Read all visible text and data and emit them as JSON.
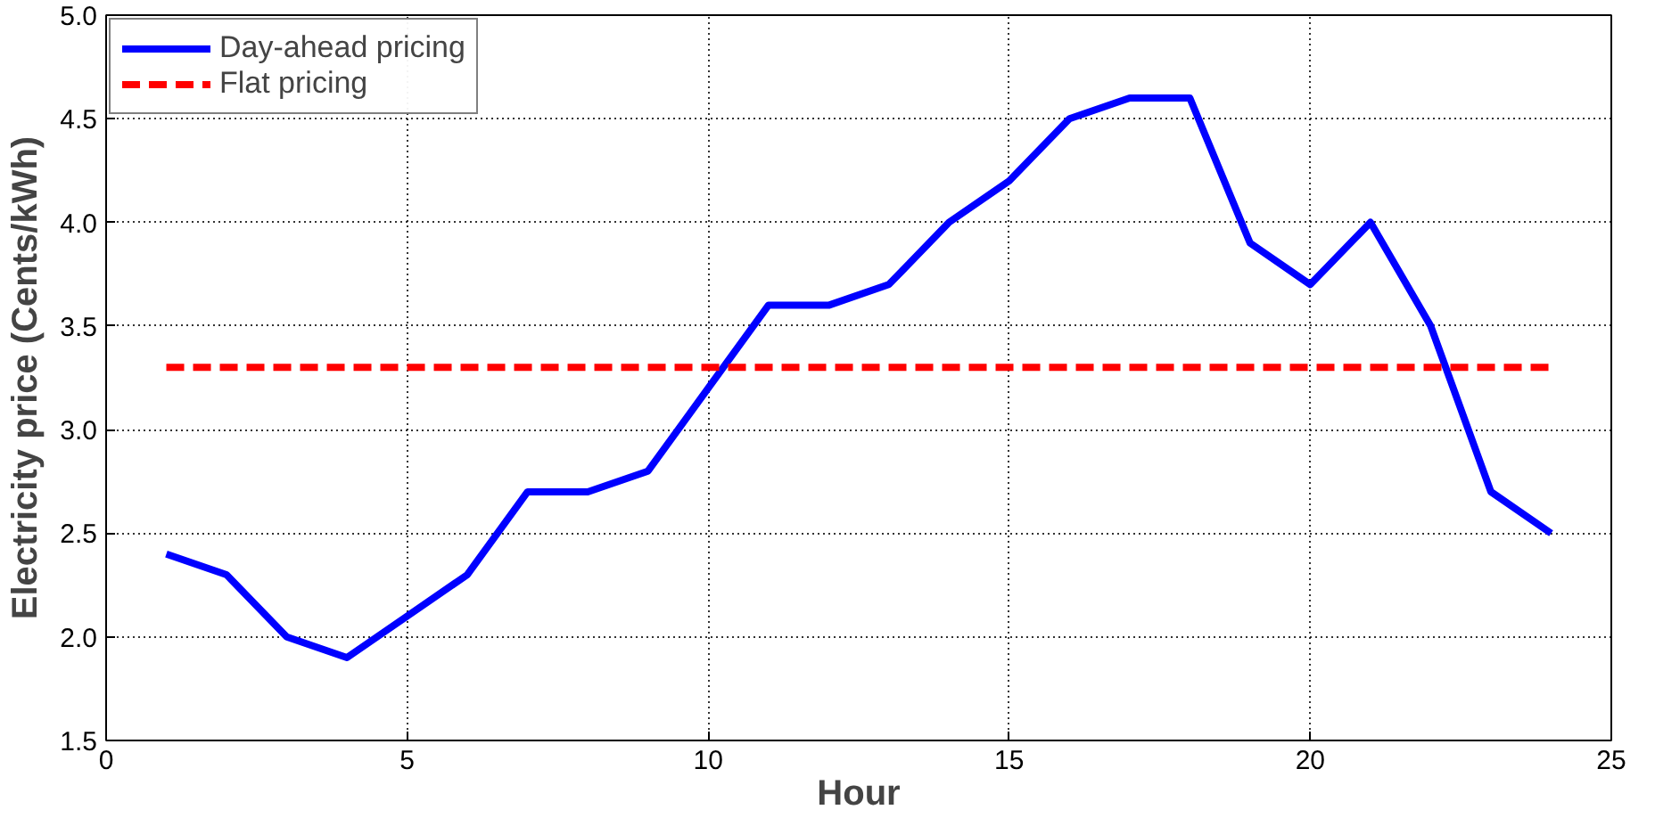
{
  "chart_data": {
    "type": "line",
    "xlabel": "Hour",
    "ylabel": "Electricity price (Cents/kWh)",
    "x": [
      1,
      2,
      3,
      4,
      5,
      6,
      7,
      8,
      9,
      10,
      11,
      12,
      13,
      14,
      15,
      16,
      17,
      18,
      19,
      20,
      21,
      22,
      23,
      24
    ],
    "series": [
      {
        "name": "Day-ahead pricing",
        "color": "#0000ff",
        "line_style": "solid",
        "values": [
          2.4,
          2.3,
          2.0,
          1.9,
          2.1,
          2.3,
          2.7,
          2.7,
          2.8,
          3.2,
          3.6,
          3.6,
          3.7,
          4.0,
          4.2,
          4.5,
          4.6,
          4.6,
          3.9,
          3.7,
          4.0,
          3.5,
          2.7,
          2.5
        ]
      },
      {
        "name": "Flat pricing",
        "color": "#ff0000",
        "line_style": "dashed",
        "values": [
          3.3,
          3.3,
          3.3,
          3.3,
          3.3,
          3.3,
          3.3,
          3.3,
          3.3,
          3.3,
          3.3,
          3.3,
          3.3,
          3.3,
          3.3,
          3.3,
          3.3,
          3.3,
          3.3,
          3.3,
          3.3,
          3.3,
          3.3,
          3.3
        ]
      }
    ],
    "xlim": [
      0,
      25
    ],
    "xticks": [
      0,
      5,
      10,
      15,
      20,
      25
    ],
    "ylim": [
      1.5,
      5.0
    ],
    "yticks": [
      1.5,
      {
        "value": 2,
        "label": "2.0"
      },
      2.5,
      {
        "value": 3,
        "label": "3.0"
      },
      3.5,
      {
        "value": 4,
        "label": "4.0"
      },
      4.5,
      {
        "value": 5,
        "label": "5.0"
      }
    ],
    "grid": true,
    "legend": "top left",
    "marker": "none"
  }
}
